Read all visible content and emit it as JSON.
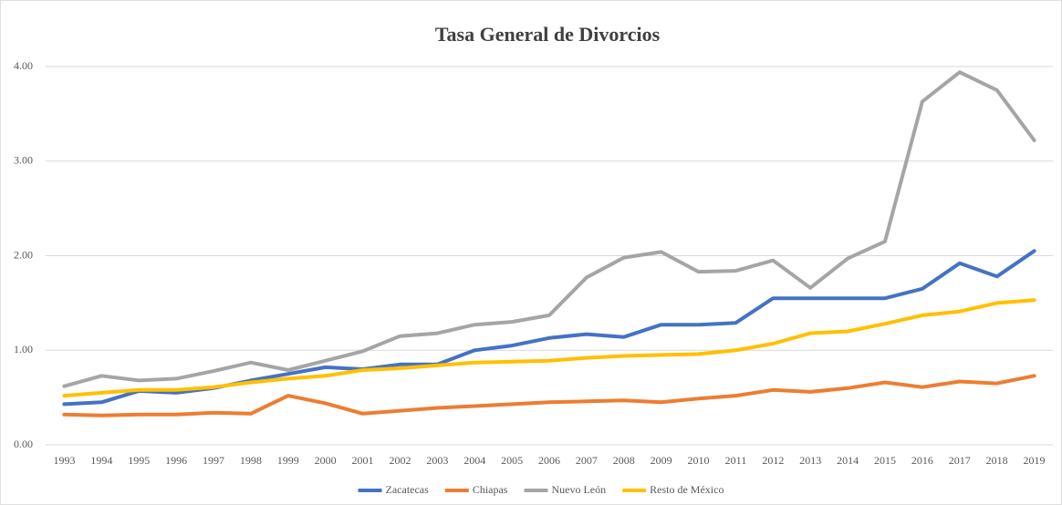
{
  "chart_data": {
    "type": "line",
    "title": "Tasa General de Divorcios",
    "categories": [
      "1993",
      "1994",
      "1995",
      "1996",
      "1997",
      "1998",
      "1999",
      "2000",
      "2001",
      "2002",
      "2003",
      "2004",
      "2005",
      "2006",
      "2007",
      "2008",
      "2009",
      "2010",
      "2011",
      "2012",
      "2013",
      "2014",
      "2015",
      "2016",
      "2017",
      "2018",
      "2019"
    ],
    "series": [
      {
        "name": "Zacatecas",
        "color": "#4472c4",
        "values": [
          0.43,
          0.45,
          0.57,
          0.55,
          0.6,
          0.68,
          0.75,
          0.82,
          0.8,
          0.85,
          0.85,
          1.0,
          1.05,
          1.13,
          1.17,
          1.14,
          1.27,
          1.27,
          1.29,
          1.55,
          1.55,
          1.55,
          1.55,
          1.65,
          1.92,
          1.78,
          2.05
        ]
      },
      {
        "name": "Chiapas",
        "color": "#ed7d31",
        "values": [
          0.32,
          0.31,
          0.32,
          0.32,
          0.34,
          0.33,
          0.52,
          0.44,
          0.33,
          0.36,
          0.39,
          0.41,
          0.43,
          0.45,
          0.46,
          0.47,
          0.45,
          0.49,
          0.52,
          0.58,
          0.56,
          0.6,
          0.66,
          0.61,
          0.67,
          0.65,
          0.73
        ]
      },
      {
        "name": "Nuevo León",
        "color": "#a5a5a5",
        "values": [
          0.62,
          0.73,
          0.68,
          0.7,
          0.78,
          0.87,
          0.79,
          0.89,
          0.99,
          1.15,
          1.18,
          1.27,
          1.3,
          1.37,
          1.77,
          1.98,
          2.04,
          1.83,
          1.84,
          1.95,
          1.66,
          1.97,
          2.15,
          3.63,
          3.94,
          3.75,
          3.22
        ]
      },
      {
        "name": "Resto de México",
        "color": "#ffc000",
        "values": [
          0.52,
          0.55,
          0.58,
          0.58,
          0.61,
          0.66,
          0.7,
          0.73,
          0.79,
          0.81,
          0.84,
          0.87,
          0.88,
          0.89,
          0.92,
          0.94,
          0.95,
          0.96,
          1.0,
          1.07,
          1.18,
          1.2,
          1.28,
          1.37,
          1.41,
          1.5,
          1.53
        ]
      }
    ],
    "ylim": [
      0,
      4
    ],
    "yticks": [
      {
        "value": 0,
        "label": "0.00"
      },
      {
        "value": 1,
        "label": "1.00"
      },
      {
        "value": 2,
        "label": "2.00"
      },
      {
        "value": 3,
        "label": "3.00"
      },
      {
        "value": 4,
        "label": "4.00"
      }
    ],
    "grid": true,
    "legend": "bottom"
  }
}
